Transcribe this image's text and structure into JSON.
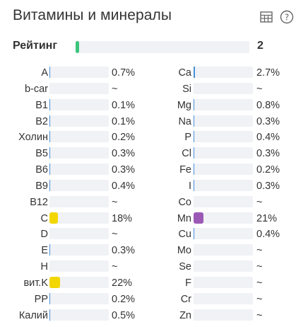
{
  "header": {
    "title": "Витамины и минералы",
    "table_icon": "table-icon",
    "help_icon": "help-icon"
  },
  "rating": {
    "label": "Рейтинг",
    "value": "2",
    "fill_fraction": 0.02,
    "color": "#3cc47c"
  },
  "colors": {
    "track": "#f0f2f5",
    "low": "#4a90d9",
    "yellow": "#f2d600",
    "purple": "#9b59b6"
  },
  "vitamins": [
    {
      "label": "A",
      "value": "0.7%",
      "pct": 0.7,
      "color": "#4a90d9"
    },
    {
      "label": "b-car",
      "value": "~",
      "pct": 0,
      "color": "#4a90d9"
    },
    {
      "label": "B1",
      "value": "0.1%",
      "pct": 0.1,
      "color": "#4a90d9"
    },
    {
      "label": "B2",
      "value": "0.1%",
      "pct": 0.1,
      "color": "#4a90d9"
    },
    {
      "label": "Холин",
      "value": "0.2%",
      "pct": 0.2,
      "color": "#4a90d9"
    },
    {
      "label": "B5",
      "value": "0.3%",
      "pct": 0.3,
      "color": "#4a90d9"
    },
    {
      "label": "B6",
      "value": "0.3%",
      "pct": 0.3,
      "color": "#4a90d9"
    },
    {
      "label": "B9",
      "value": "0.4%",
      "pct": 0.4,
      "color": "#4a90d9"
    },
    {
      "label": "B12",
      "value": "~",
      "pct": 0,
      "color": "#4a90d9"
    },
    {
      "label": "C",
      "value": "18%",
      "pct": 18,
      "color": "#f2d600"
    },
    {
      "label": "D",
      "value": "~",
      "pct": 0,
      "color": "#4a90d9"
    },
    {
      "label": "E",
      "value": "0.3%",
      "pct": 0.3,
      "color": "#4a90d9"
    },
    {
      "label": "H",
      "value": "~",
      "pct": 0,
      "color": "#4a90d9"
    },
    {
      "label": "вит.K",
      "value": "22%",
      "pct": 22,
      "color": "#f2d600"
    },
    {
      "label": "PP",
      "value": "0.2%",
      "pct": 0.2,
      "color": "#4a90d9"
    },
    {
      "label": "Калий",
      "value": "0.5%",
      "pct": 0.5,
      "color": "#4a90d9"
    }
  ],
  "minerals": [
    {
      "label": "Ca",
      "value": "2.7%",
      "pct": 2.7,
      "color": "#4a90d9"
    },
    {
      "label": "Si",
      "value": "~",
      "pct": 0,
      "color": "#4a90d9"
    },
    {
      "label": "Mg",
      "value": "0.8%",
      "pct": 0.8,
      "color": "#4a90d9"
    },
    {
      "label": "Na",
      "value": "0.3%",
      "pct": 0.3,
      "color": "#4a90d9"
    },
    {
      "label": "P",
      "value": "0.4%",
      "pct": 0.4,
      "color": "#4a90d9"
    },
    {
      "label": "Cl",
      "value": "0.3%",
      "pct": 0.3,
      "color": "#4a90d9"
    },
    {
      "label": "Fe",
      "value": "0.2%",
      "pct": 0.2,
      "color": "#4a90d9"
    },
    {
      "label": "I",
      "value": "0.3%",
      "pct": 0.3,
      "color": "#4a90d9"
    },
    {
      "label": "Co",
      "value": "~",
      "pct": 0,
      "color": "#4a90d9"
    },
    {
      "label": "Mn",
      "value": "21%",
      "pct": 21,
      "color": "#9b59b6"
    },
    {
      "label": "Cu",
      "value": "0.4%",
      "pct": 0.4,
      "color": "#4a90d9"
    },
    {
      "label": "Mo",
      "value": "~",
      "pct": 0,
      "color": "#4a90d9"
    },
    {
      "label": "Se",
      "value": "~",
      "pct": 0,
      "color": "#4a90d9"
    },
    {
      "label": "F",
      "value": "~",
      "pct": 0,
      "color": "#4a90d9"
    },
    {
      "label": "Cr",
      "value": "~",
      "pct": 0,
      "color": "#4a90d9"
    },
    {
      "label": "Zn",
      "value": "~",
      "pct": 0,
      "color": "#4a90d9"
    }
  ]
}
